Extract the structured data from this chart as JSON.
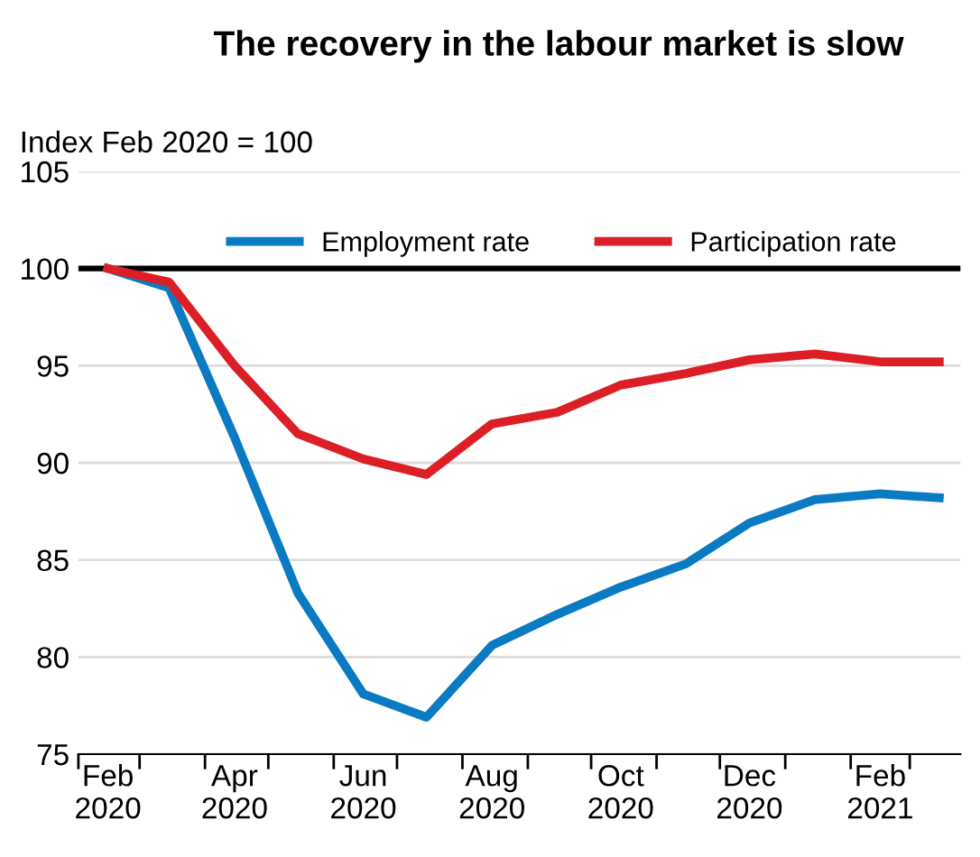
{
  "chart_data": {
    "type": "line",
    "title": "The recovery in the labour market is slow",
    "ylabel": "Index Feb 2020 = 100",
    "x": [
      "2020-02-15",
      "2020-03-15",
      "2020-04-15",
      "2020-05-15",
      "2020-06-15",
      "2020-07-15",
      "2020-08-15",
      "2020-09-15",
      "2020-10-15",
      "2020-11-15",
      "2020-12-15",
      "2021-01-15",
      "2021-02-15",
      "2021-03-15"
    ],
    "series": [
      {
        "name": "Employment rate",
        "color": "#0a7bc2",
        "values": [
          100,
          99.0,
          91.3,
          83.3,
          78.1,
          76.9,
          80.6,
          82.2,
          83.6,
          84.8,
          86.9,
          88.1,
          88.4,
          88.2
        ]
      },
      {
        "name": "Participation rate",
        "color": "#dc1f26",
        "values": [
          100,
          99.3,
          95.0,
          91.5,
          90.2,
          89.4,
          92.0,
          92.6,
          94.0,
          94.6,
          95.3,
          95.6,
          95.2,
          95.2
        ]
      }
    ],
    "xlim": [
      "2020-02-01",
      "2021-03-25"
    ],
    "xticks": [
      {
        "value": "2020-02-15",
        "label": "Feb\n2020"
      },
      {
        "value": "2020-04-15",
        "label": "Apr\n2020"
      },
      {
        "value": "2020-06-15",
        "label": "Jun\n2020"
      },
      {
        "value": "2020-08-15",
        "label": "Aug\n2020"
      },
      {
        "value": "2020-10-15",
        "label": "Oct\n2020"
      },
      {
        "value": "2020-12-15",
        "label": "Dec\n2020"
      },
      {
        "value": "2021-02-15",
        "label": "Feb\n2021"
      },
      {
        "value": "2020-02-01",
        "label": null
      },
      {
        "value": "2020-03-01",
        "label": null
      },
      {
        "value": "2020-04-01",
        "label": null
      },
      {
        "value": "2020-05-01",
        "label": null
      },
      {
        "value": "2020-06-01",
        "label": null
      },
      {
        "value": "2020-07-01",
        "label": null
      },
      {
        "value": "2020-08-01",
        "label": null
      },
      {
        "value": "2020-09-01",
        "label": null
      },
      {
        "value": "2020-10-01",
        "label": null
      },
      {
        "value": "2020-11-01",
        "label": null
      },
      {
        "value": "2020-12-01",
        "label": null
      },
      {
        "value": "2021-01-01",
        "label": null
      },
      {
        "value": "2021-02-01",
        "label": null
      },
      {
        "value": "2021-03-01",
        "label": null
      }
    ],
    "ylim": [
      75,
      105
    ],
    "yticks": [
      75,
      80,
      85,
      90,
      95,
      100,
      105
    ],
    "ref_lines": [
      {
        "axis": "y",
        "value": 100,
        "color": "#000000"
      }
    ],
    "grid": "y",
    "legend": "top",
    "marker": "none",
    "line_style": "solid"
  }
}
